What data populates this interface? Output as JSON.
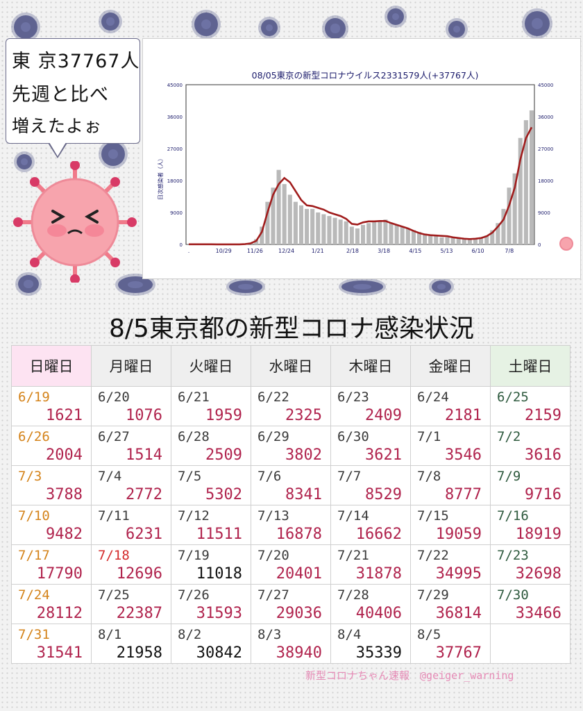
{
  "bubble": {
    "line1": "東 京37767人",
    "line2": "先週と比べ",
    "line3": "増えたよぉ"
  },
  "chart_data": {
    "type": "line",
    "title": "08/05東京の新型コロナウイルス2331579人(+37767人)",
    "ylabel": "日次感染者（人）",
    "ylim": [
      0,
      45000
    ],
    "yticks": [
      0,
      9000,
      18000,
      27000,
      36000,
      45000
    ],
    "xticks": [
      "10/29",
      "11/26",
      "12/24",
      "1/21",
      "2/18",
      "3/18",
      "4/15",
      "5/13",
      "6/10",
      "7/8"
    ],
    "x_start": ".",
    "series": [
      {
        "name": "daily_cases",
        "kind": "bar",
        "values": [
          40,
          30,
          35,
          30,
          25,
          30,
          25,
          20,
          22,
          20,
          100,
          300,
          1500,
          5000,
          12000,
          16000,
          21000,
          17000,
          14000,
          12000,
          11000,
          10000,
          10000,
          9000,
          8500,
          8000,
          7500,
          7000,
          6500,
          5000,
          4500,
          5500,
          6000,
          6500,
          6500,
          7000,
          6000,
          5500,
          5000,
          4500,
          4000,
          3500,
          3000,
          2500,
          2500,
          2000,
          2000,
          1800,
          1600,
          1500,
          1400,
          1500,
          1800,
          2500,
          4000,
          6000,
          10000,
          16000,
          20000,
          30000,
          35000,
          37767
        ]
      },
      {
        "name": "7day_average",
        "kind": "line",
        "values": [
          40,
          40,
          38,
          35,
          30,
          28,
          27,
          25,
          22,
          20,
          80,
          300,
          1000,
          3500,
          9000,
          14000,
          17000,
          18700,
          17500,
          15000,
          12500,
          11000,
          10800,
          10300,
          9800,
          9000,
          8500,
          8000,
          7200,
          5800,
          5600,
          6200,
          6500,
          6500,
          6600,
          6600,
          6000,
          5500,
          5000,
          4500,
          3800,
          3200,
          2800,
          2600,
          2500,
          2400,
          2300,
          2000,
          1800,
          1600,
          1500,
          1600,
          1800,
          2300,
          3300,
          5000,
          7000,
          11000,
          16000,
          24000,
          30000,
          33000
        ]
      }
    ]
  },
  "title": "8/5東京都の新型コロナ感染状況",
  "weekdays": [
    "日曜日",
    "月曜日",
    "火曜日",
    "水曜日",
    "木曜日",
    "金曜日",
    "土曜日"
  ],
  "weeks": [
    [
      {
        "d": "6/19",
        "v": "1621"
      },
      {
        "d": "6/20",
        "v": "1076"
      },
      {
        "d": "6/21",
        "v": "1959"
      },
      {
        "d": "6/22",
        "v": "2325"
      },
      {
        "d": "6/23",
        "v": "2409"
      },
      {
        "d": "6/24",
        "v": "2181"
      },
      {
        "d": "6/25",
        "v": "2159"
      }
    ],
    [
      {
        "d": "6/26",
        "v": "2004"
      },
      {
        "d": "6/27",
        "v": "1514"
      },
      {
        "d": "6/28",
        "v": "2509"
      },
      {
        "d": "6/29",
        "v": "3802"
      },
      {
        "d": "6/30",
        "v": "3621"
      },
      {
        "d": "7/1",
        "v": "3546"
      },
      {
        "d": "7/2",
        "v": "3616"
      }
    ],
    [
      {
        "d": "7/3",
        "v": "3788"
      },
      {
        "d": "7/4",
        "v": "2772"
      },
      {
        "d": "7/5",
        "v": "5302"
      },
      {
        "d": "7/6",
        "v": "8341"
      },
      {
        "d": "7/7",
        "v": "8529"
      },
      {
        "d": "7/8",
        "v": "8777"
      },
      {
        "d": "7/9",
        "v": "9716"
      }
    ],
    [
      {
        "d": "7/10",
        "v": "9482"
      },
      {
        "d": "7/11",
        "v": "6231"
      },
      {
        "d": "7/12",
        "v": "11511"
      },
      {
        "d": "7/13",
        "v": "16878"
      },
      {
        "d": "7/14",
        "v": "16662"
      },
      {
        "d": "7/15",
        "v": "19059"
      },
      {
        "d": "7/16",
        "v": "18919"
      }
    ],
    [
      {
        "d": "7/17",
        "v": "17790"
      },
      {
        "d": "7/18",
        "v": "12696"
      },
      {
        "d": "7/19",
        "v": "11018"
      },
      {
        "d": "7/20",
        "v": "20401"
      },
      {
        "d": "7/21",
        "v": "31878"
      },
      {
        "d": "7/22",
        "v": "34995"
      },
      {
        "d": "7/23",
        "v": "32698"
      }
    ],
    [
      {
        "d": "7/24",
        "v": "28112"
      },
      {
        "d": "7/25",
        "v": "22387"
      },
      {
        "d": "7/26",
        "v": "31593"
      },
      {
        "d": "7/27",
        "v": "29036"
      },
      {
        "d": "7/28",
        "v": "40406"
      },
      {
        "d": "7/29",
        "v": "36814"
      },
      {
        "d": "7/30",
        "v": "33466"
      }
    ],
    [
      {
        "d": "7/31",
        "v": "31541"
      },
      {
        "d": "8/1",
        "v": "21958"
      },
      {
        "d": "8/2",
        "v": "30842"
      },
      {
        "d": "8/3",
        "v": "38940"
      },
      {
        "d": "8/4",
        "v": "35339"
      },
      {
        "d": "8/5",
        "v": "37767"
      },
      {
        "d": "",
        "v": ""
      }
    ]
  ],
  "footer": "新型コロナちゃん速報　@geiger_warning",
  "colors": {
    "value": "#b0234d",
    "sunday_date": "#d4831a",
    "holiday_date": "#d42a2a",
    "line": "#a01c1c",
    "bar": "#b9b9b9"
  }
}
